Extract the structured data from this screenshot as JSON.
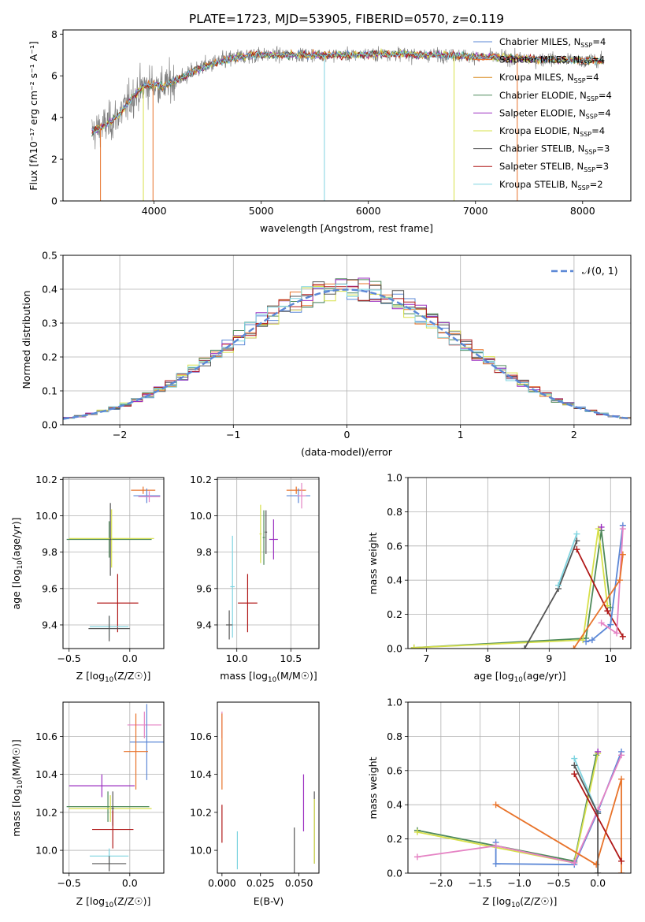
{
  "figure": {
    "title": "PLATE=1723, MJD=53905, FIBERID=0570, z=0.119"
  },
  "chart_data": [
    {
      "id": "spectrum",
      "type": "line",
      "xlabel": "wavelength [Angstrom, rest frame]",
      "ylabel": "Flux [fλ10⁻¹⁷ erg cm⁻² s⁻¹ A⁻¹]",
      "xlim": [
        3150,
        8450
      ],
      "ylim": [
        0,
        8.2
      ],
      "xticks": [
        4000,
        5000,
        6000,
        7000,
        8000
      ],
      "yticks": [
        0,
        2,
        4,
        6,
        8
      ],
      "grid": false,
      "legend_position": "right",
      "continuum": {
        "x": [
          3420,
          3500,
          3600,
          3700,
          3800,
          3900,
          4000,
          4100,
          4200,
          4300,
          4400,
          4500,
          4700,
          4900,
          5100,
          5300,
          5500,
          5700,
          5900,
          6100,
          6300,
          6500,
          6700,
          6900,
          7100,
          7300,
          7500,
          7700,
          7900,
          8100,
          8200
        ],
        "y": [
          3.3,
          3.5,
          3.8,
          4.3,
          5.0,
          5.5,
          5.6,
          5.5,
          5.8,
          6.0,
          6.3,
          6.5,
          6.8,
          7.0,
          7.0,
          7.0,
          7.0,
          7.0,
          7.0,
          7.05,
          7.05,
          7.0,
          7.0,
          6.95,
          6.9,
          6.85,
          6.8,
          6.8,
          6.75,
          6.75,
          6.7
        ]
      },
      "series": [
        {
          "name": "Chabrier MILES, N_SSP=4",
          "label_main": "Chabrier MILES, N",
          "label_sub": "SSP",
          "label_tail": "=4",
          "color": "#5b87d6"
        },
        {
          "name": "Salpeter MILES, N_SSP=4",
          "label_main": "Salpeter MILES, N",
          "label_sub": "SSP",
          "label_tail": "=4",
          "color": "#e8732a"
        },
        {
          "name": "Kroupa MILES, N_SSP=4",
          "label_main": "Kroupa MILES, N",
          "label_sub": "SSP",
          "label_tail": "=4",
          "color": "#d98a1f"
        },
        {
          "name": "Chabrier ELODIE, N_SSP=4",
          "label_main": "Chabrier ELODIE, N",
          "label_sub": "SSP",
          "label_tail": "=4",
          "color": "#4f8a5b"
        },
        {
          "name": "Salpeter ELODIE, N_SSP=4",
          "label_main": "Salpeter ELODIE, N",
          "label_sub": "SSP",
          "label_tail": "=4",
          "color": "#9b2fc0"
        },
        {
          "name": "Kroupa ELODIE, N_SSP=4",
          "label_main": "Kroupa ELODIE, N",
          "label_sub": "SSP",
          "label_tail": "=4",
          "color": "#d7e04a"
        },
        {
          "name": "Chabrier STELIB, N_SSP=3",
          "label_main": "Chabrier STELIB, N",
          "label_sub": "SSP",
          "label_tail": "=3",
          "color": "#555555"
        },
        {
          "name": "Salpeter STELIB, N_SSP=3",
          "label_main": "Salpeter STELIB, N",
          "label_sub": "SSP",
          "label_tail": "=3",
          "color": "#b01818"
        },
        {
          "name": "Kroupa STELIB, N_SSP=2",
          "label_main": "Kroupa STELIB, N",
          "label_sub": "SSP",
          "label_tail": "=2",
          "color": "#7fd4e0"
        }
      ],
      "drops": [
        {
          "x": 3500,
          "color": "#e8732a"
        },
        {
          "x": 3900,
          "color": "#d7e04a"
        },
        {
          "x": 3990,
          "color": "#e8732a"
        },
        {
          "x": 5590,
          "color": "#7fd4e0"
        },
        {
          "x": 6800,
          "color": "#d7e04a"
        },
        {
          "x": 7390,
          "color": "#e8732a"
        }
      ]
    },
    {
      "id": "residuals",
      "type": "histogram",
      "xlabel": "(data-model)/error",
      "ylabel": "Normed distribution",
      "xlim": [
        -2.5,
        2.5
      ],
      "ylim": [
        0,
        0.5
      ],
      "xticks": [
        -2,
        -1,
        0,
        1,
        2
      ],
      "xtick_labels": [
        "−2",
        "−1",
        "0",
        "1",
        "2"
      ],
      "yticks": [
        0,
        0.1,
        0.2,
        0.3,
        0.4,
        0.5
      ],
      "ytick_labels": [
        "0.0",
        "0.1",
        "0.2",
        "0.3",
        "0.4",
        "0.5"
      ],
      "grid": true,
      "bin_width": 0.1,
      "gaussian": {
        "name": "𝒩(0, 1)",
        "color": "#5b87d6",
        "mean": 0,
        "sigma": 1
      },
      "legend_position": "top-right"
    },
    {
      "id": "age-vs-Z",
      "type": "errorbar",
      "xlabel_main": "Z [log",
      "xlabel_sub": "10",
      "xlabel_tail": "(Z/Z☉)]",
      "ylabel_main": "age  [log",
      "ylabel_sub": "10",
      "ylabel_tail": "(age/yr)]",
      "xlim": [
        -0.55,
        0.28
      ],
      "ylim": [
        9.27,
        10.21
      ],
      "xticks": [
        -0.5,
        0.0
      ],
      "xtick_labels": [
        "−0.5",
        "0.0"
      ],
      "yticks": [
        9.4,
        9.6,
        9.8,
        10.0,
        10.2
      ],
      "ytick_labels": [
        "9.4",
        "9.6",
        "9.8",
        "10.0",
        "10.2"
      ],
      "grid": true,
      "points": [
        {
          "x": 0.11,
          "xerr": 0.1,
          "y": 10.14,
          "yerr": 0.02,
          "color": "#e8732a"
        },
        {
          "x": 0.14,
          "xerr": 0.11,
          "y": 10.11,
          "yerr": 0.04,
          "color": "#5b87d6"
        },
        {
          "x": 0.16,
          "xerr": 0.09,
          "y": 10.105,
          "yerr": 0.03,
          "color": "#e583c4"
        },
        {
          "x": -0.17,
          "xerr": 0.35,
          "y": 9.87,
          "yerr": 0.1,
          "color": "#4f8a5b"
        },
        {
          "x": -0.15,
          "xerr": 0.35,
          "y": 9.875,
          "yerr": 0.16,
          "color": "#d7e04a"
        },
        {
          "x": -0.16,
          "xerr": 0.01,
          "y": 9.87,
          "yerr": 0.2,
          "color": "#555555"
        },
        {
          "x": -0.1,
          "xerr": 0.17,
          "y": 9.52,
          "yerr": 0.16,
          "color": "#b01818"
        },
        {
          "x": -0.17,
          "xerr": 0.16,
          "y": 9.39,
          "yerr": 0.06,
          "color": "#7fd4e0"
        },
        {
          "x": -0.17,
          "xerr": 0.17,
          "y": 9.38,
          "yerr": 0.07,
          "color": "#555555"
        }
      ]
    },
    {
      "id": "age-vs-mass",
      "type": "errorbar",
      "xlabel_main": "mass [log",
      "xlabel_sub": "10",
      "xlabel_tail": "(M/M☉)]",
      "xlim": [
        9.82,
        10.76
      ],
      "ylim": [
        9.27,
        10.21
      ],
      "xticks": [
        10.0,
        10.5
      ],
      "xtick_labels": [
        "10.0",
        "10.5"
      ],
      "yticks": [
        9.4,
        9.6,
        9.8,
        10.0,
        10.2
      ],
      "ytick_labels": [
        "9.4",
        "9.6",
        "9.8",
        "10.0",
        "10.2"
      ],
      "grid": true,
      "points": [
        {
          "x": 10.55,
          "xerr": 0.09,
          "y": 10.14,
          "yerr": 0.02,
          "color": "#e8732a"
        },
        {
          "x": 10.57,
          "xerr": 0.11,
          "y": 10.11,
          "yerr": 0.04,
          "color": "#5b87d6"
        },
        {
          "x": 10.6,
          "xerr": 0.04,
          "y": 10.11,
          "yerr": 0.07,
          "color": "#e583c4"
        },
        {
          "x": 10.22,
          "xerr": 0.01,
          "y": 9.9,
          "yerr": 0.16,
          "color": "#d7e04a"
        },
        {
          "x": 10.25,
          "xerr": 0.01,
          "y": 9.88,
          "yerr": 0.15,
          "color": "#4f8a5b"
        },
        {
          "x": 10.27,
          "xerr": 0.01,
          "y": 9.91,
          "yerr": 0.12,
          "color": "#555555"
        },
        {
          "x": 10.34,
          "xerr": 0.04,
          "y": 9.87,
          "yerr": 0.11,
          "color": "#9b2fc0"
        },
        {
          "x": 9.96,
          "xerr": 0.02,
          "y": 9.61,
          "yerr": 0.28,
          "color": "#7fd4e0"
        },
        {
          "x": 10.1,
          "xerr": 0.09,
          "y": 9.52,
          "yerr": 0.16,
          "color": "#b01818"
        },
        {
          "x": 9.93,
          "xerr": 0.03,
          "y": 9.4,
          "yerr": 0.08,
          "color": "#555555"
        }
      ]
    },
    {
      "id": "weight-vs-age",
      "type": "line",
      "xlabel_main": "age  [log",
      "xlabel_sub": "10",
      "xlabel_tail": "(age/yr)]",
      "ylabel": "mass weight",
      "xlim": [
        6.7,
        10.33
      ],
      "ylim": [
        0,
        1.0
      ],
      "xticks": [
        7,
        8,
        9,
        10
      ],
      "yticks": [
        0,
        0.2,
        0.4,
        0.6,
        0.8,
        1.0
      ],
      "ytick_labels": [
        "0.0",
        "0.2",
        "0.4",
        "0.6",
        "0.8",
        "1.0"
      ],
      "grid": true,
      "series": [
        {
          "color": "#4f8a5b",
          "x": [
            6.8,
            9.6,
            9.85,
            10.0
          ],
          "y": [
            0.005,
            0.06,
            0.69,
            0.24
          ]
        },
        {
          "color": "#d7e04a",
          "x": [
            6.8,
            9.55,
            9.8,
            9.95
          ],
          "y": [
            0.005,
            0.05,
            0.7,
            0.25
          ]
        },
        {
          "color": "#555555",
          "x": [
            8.6,
            9.15,
            9.45
          ],
          "y": [
            0.0,
            0.35,
            0.63
          ]
        },
        {
          "color": "#7fd4e0",
          "x": [
            9.15,
            9.45
          ],
          "y": [
            0.37,
            0.67
          ]
        },
        {
          "color": "#b01818",
          "x": [
            9.45,
            9.95,
            10.2
          ],
          "y": [
            0.58,
            0.22,
            0.07
          ]
        },
        {
          "color": "#5b87d6",
          "x": [
            9.6,
            9.7,
            10.0,
            10.2
          ],
          "y": [
            0.04,
            0.05,
            0.14,
            0.72
          ]
        },
        {
          "color": "#e583c4",
          "x": [
            9.85,
            10.1,
            10.2
          ],
          "y": [
            0.15,
            0.09,
            0.7
          ]
        },
        {
          "color": "#e8732a",
          "x": [
            9.4,
            10.15,
            10.2
          ],
          "y": [
            0.0,
            0.4,
            0.55
          ]
        },
        {
          "color": "#9b2fc0",
          "x": [
            9.85
          ],
          "y": [
            0.71
          ]
        }
      ]
    },
    {
      "id": "mass-vs-Z",
      "type": "errorbar",
      "xlabel_main": "Z [log",
      "xlabel_sub": "10",
      "xlabel_tail": "(Z/Z☉)]",
      "ylabel_main": "mass [log",
      "ylabel_sub": "10",
      "ylabel_tail": "(M/M☉)]",
      "xlim": [
        -0.55,
        0.28
      ],
      "ylim": [
        9.88,
        10.78
      ],
      "xticks": [
        -0.5,
        0.0
      ],
      "xtick_labels": [
        "−0.5",
        "0.0"
      ],
      "yticks": [
        10.0,
        10.2,
        10.4,
        10.6
      ],
      "ytick_labels": [
        "10.0",
        "10.2",
        "10.4",
        "10.6"
      ],
      "grid": true,
      "points": [
        {
          "x": 0.12,
          "xerr": 0.14,
          "y": 10.66,
          "yerr": 0.07,
          "color": "#e583c4"
        },
        {
          "x": 0.14,
          "xerr": 0.14,
          "y": 10.57,
          "yerr": 0.2,
          "color": "#5b87d6"
        },
        {
          "x": 0.05,
          "xerr": 0.1,
          "y": 10.52,
          "yerr": 0.2,
          "color": "#e8732a"
        },
        {
          "x": -0.23,
          "xerr": 0.27,
          "y": 10.34,
          "yerr": 0.06,
          "color": "#9b2fc0"
        },
        {
          "x": -0.18,
          "xerr": 0.34,
          "y": 10.23,
          "yerr": 0.08,
          "color": "#4f8a5b"
        },
        {
          "x": -0.16,
          "xerr": 0.34,
          "y": 10.22,
          "yerr": 0.07,
          "color": "#d7e04a"
        },
        {
          "x": -0.14,
          "xerr": 0.01,
          "y": 10.22,
          "yerr": 0.09,
          "color": "#555555"
        },
        {
          "x": -0.14,
          "xerr": 0.17,
          "y": 10.11,
          "yerr": 0.1,
          "color": "#b01818"
        },
        {
          "x": -0.17,
          "xerr": 0.16,
          "y": 9.97,
          "yerr": 0.04,
          "color": "#7fd4e0"
        },
        {
          "x": -0.17,
          "xerr": 0.14,
          "y": 9.93,
          "yerr": 0.04,
          "color": "#555555"
        }
      ]
    },
    {
      "id": "mass-vs-ebv",
      "type": "errorbar",
      "xlabel": "E(B-V)",
      "xlim": [
        -0.003,
        0.063
      ],
      "ylim": [
        9.88,
        10.78
      ],
      "xticks": [
        0.0,
        0.025,
        0.05
      ],
      "xtick_labels": [
        "0.000",
        "0.025",
        "0.050"
      ],
      "yticks": [
        10.0,
        10.2,
        10.4,
        10.6
      ],
      "ytick_labels": [
        "10.0",
        "10.2",
        "10.4",
        "10.6"
      ],
      "grid": false,
      "points": [
        {
          "x": 0.0,
          "xerr": 0,
          "y": 10.66,
          "yerr": 0.07,
          "color": "#e583c4"
        },
        {
          "x": 0.0,
          "xerr": 0,
          "y": 10.52,
          "yerr": 0.2,
          "color": "#e8732a"
        },
        {
          "x": 0.0,
          "xerr": 0,
          "y": 10.14,
          "yerr": 0.1,
          "color": "#b01818"
        },
        {
          "x": 0.01,
          "xerr": 0,
          "y": 10.0,
          "yerr": 0.1,
          "color": "#7fd4e0"
        },
        {
          "x": 0.047,
          "xerr": 0,
          "y": 10.0,
          "yerr": 0.12,
          "color": "#555555"
        },
        {
          "x": 0.053,
          "xerr": 0,
          "y": 10.25,
          "yerr": 0.15,
          "color": "#9b2fc0"
        },
        {
          "x": 0.06,
          "xerr": 0,
          "y": 10.12,
          "yerr": 0.19,
          "color": "#555555"
        },
        {
          "x": 0.06,
          "xerr": 0,
          "y": 10.1,
          "yerr": 0.17,
          "color": "#d7e04a"
        }
      ]
    },
    {
      "id": "weight-vs-Z",
      "type": "line",
      "xlabel_main": "Z [log",
      "xlabel_sub": "10",
      "xlabel_tail": "(Z/Z☉)]",
      "ylabel": "mass weight",
      "xlim": [
        -2.42,
        0.42
      ],
      "ylim": [
        0,
        1.0
      ],
      "xticks": [
        -2.0,
        -1.5,
        -1.0,
        -0.5,
        0.0
      ],
      "xtick_labels": [
        "−2.0",
        "−1.5",
        "−1.0",
        "−0.5",
        "0.0"
      ],
      "yticks": [
        0,
        0.2,
        0.4,
        0.6,
        0.8,
        1.0
      ],
      "ytick_labels": [
        "0.0",
        "0.2",
        "0.4",
        "0.6",
        "0.8",
        "1.0"
      ],
      "grid": true,
      "series": [
        {
          "color": "#4f8a5b",
          "x": [
            -2.3,
            -0.3,
            -0.02
          ],
          "y": [
            0.25,
            0.07,
            0.69
          ]
        },
        {
          "color": "#d7e04a",
          "x": [
            -2.3,
            -0.3,
            0.0
          ],
          "y": [
            0.24,
            0.06,
            0.7
          ]
        },
        {
          "color": "#5b87d6",
          "x": [
            -1.3,
            -1.3,
            -0.3,
            0.0,
            0.3
          ],
          "y": [
            0.18,
            0.055,
            0.05,
            0.36,
            0.71
          ]
        },
        {
          "color": "#e583c4",
          "x": [
            -2.3,
            -1.3,
            -0.3,
            0.0,
            0.3
          ],
          "y": [
            0.095,
            0.16,
            0.06,
            0.37,
            0.69
          ]
        },
        {
          "color": "#e8732a",
          "x": [
            -1.3,
            -0.02,
            0.3,
            0.3
          ],
          "y": [
            0.4,
            0.05,
            0.55,
            0.0
          ]
        },
        {
          "color": "#7fd4e0",
          "x": [
            -0.3,
            0.0
          ],
          "y": [
            0.67,
            0.35
          ]
        },
        {
          "color": "#555555",
          "x": [
            -0.3,
            0.0,
            0.0
          ],
          "y": [
            0.63,
            0.35,
            0.0
          ]
        },
        {
          "color": "#b01818",
          "x": [
            -0.3,
            0.3
          ],
          "y": [
            0.58,
            0.07
          ]
        },
        {
          "color": "#9b2fc0",
          "x": [
            0.0
          ],
          "y": [
            0.71
          ]
        }
      ]
    }
  ]
}
